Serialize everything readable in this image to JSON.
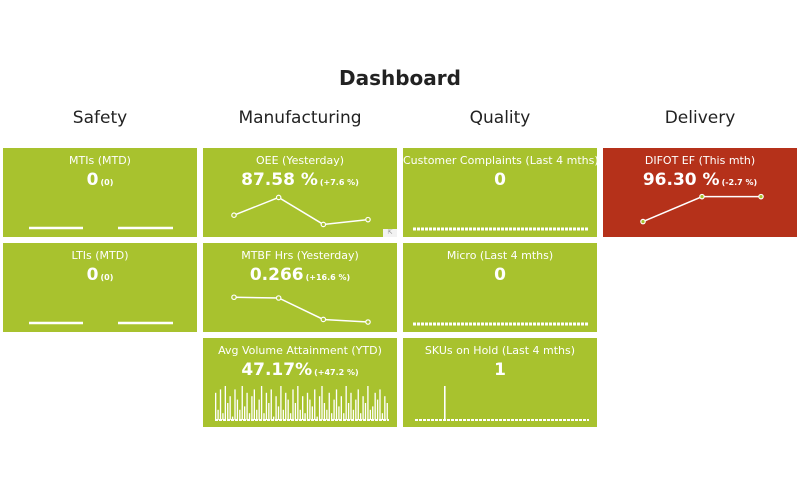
{
  "title": "Dashboard",
  "columns": [
    "Safety",
    "Manufacturing",
    "Quality",
    "Delivery"
  ],
  "colors": {
    "good": "#a8c22e",
    "bad": "#b5311a",
    "line": "#ffffff"
  },
  "tiles": {
    "mtis": {
      "label": "MTIs (MTD)",
      "value": "0",
      "delta": "(0)"
    },
    "ltis": {
      "label": "LTIs (MTD)",
      "value": "0",
      "delta": "(0)"
    },
    "oee": {
      "label": "OEE (Yesterday)",
      "value": "87.58 %",
      "delta": "(+7.6 %)"
    },
    "mtbf": {
      "label": "MTBF Hrs (Yesterday)",
      "value": "0.266",
      "delta": "(+16.6 %)"
    },
    "volume": {
      "label": "Avg Volume Attainment (YTD)",
      "value": "47.17%",
      "delta": "(+47.2 %)"
    },
    "complaints": {
      "label": "Customer Complaints (Last 4 mths)",
      "value": "0"
    },
    "micro": {
      "label": "Micro (Last 4 mths)",
      "value": "0"
    },
    "skus": {
      "label": "SKUs on Hold (Last 4 mths)",
      "value": "1"
    },
    "difot": {
      "label": "DIFOT EF (This mth)",
      "value": "96.30 %",
      "delta": "(-2.7 %)"
    }
  },
  "chart_data": [
    {
      "type": "line",
      "tile": "oee",
      "values": [
        40,
        88,
        15,
        28
      ]
    },
    {
      "type": "line",
      "tile": "mtbf",
      "values": [
        75,
        73,
        15,
        8
      ]
    },
    {
      "type": "line",
      "tile": "difot",
      "values": [
        20,
        98,
        98
      ]
    },
    {
      "type": "bar",
      "tile": "volume",
      "values": [
        0.8,
        0.3,
        0.9,
        0.2,
        1,
        0.5,
        0.7,
        0.1,
        0.9,
        0.6,
        0.3,
        1,
        0.4,
        0.8,
        0.2,
        0.7,
        0.9,
        0.3,
        0.6,
        1,
        0.2,
        0.8,
        0.5,
        0.9,
        0.1,
        0.7,
        0.4,
        1,
        0.3,
        0.8,
        0.6,
        0.2,
        0.9,
        0.5,
        1,
        0.3,
        0.7,
        0.2,
        0.8,
        0.6,
        0.4,
        0.9,
        0.1,
        0.7,
        1,
        0.5,
        0.3,
        0.8,
        0.2,
        0.6,
        0.9,
        0.4,
        0.7,
        0.2,
        1,
        0.5,
        0.8,
        0.3,
        0.6,
        0.9,
        0.2,
        0.7,
        0.5,
        1,
        0.3,
        0.4,
        0.8,
        0.6,
        0.9,
        0.2,
        0.7,
        0.5
      ]
    },
    {
      "type": "bar",
      "tile": "skus",
      "values": [
        0,
        0,
        0,
        0,
        0,
        0,
        0,
        0,
        0,
        0,
        1,
        0,
        0,
        0,
        0,
        0,
        0,
        0,
        0,
        0,
        0,
        0,
        0,
        0,
        0,
        0,
        0,
        0,
        0,
        0,
        0,
        0,
        0,
        0,
        0,
        0,
        0,
        0,
        0,
        0,
        0,
        0,
        0,
        0,
        0,
        0,
        0,
        0,
        0,
        0,
        0,
        0,
        0,
        0,
        0,
        0,
        0,
        0,
        0,
        0
      ]
    }
  ]
}
